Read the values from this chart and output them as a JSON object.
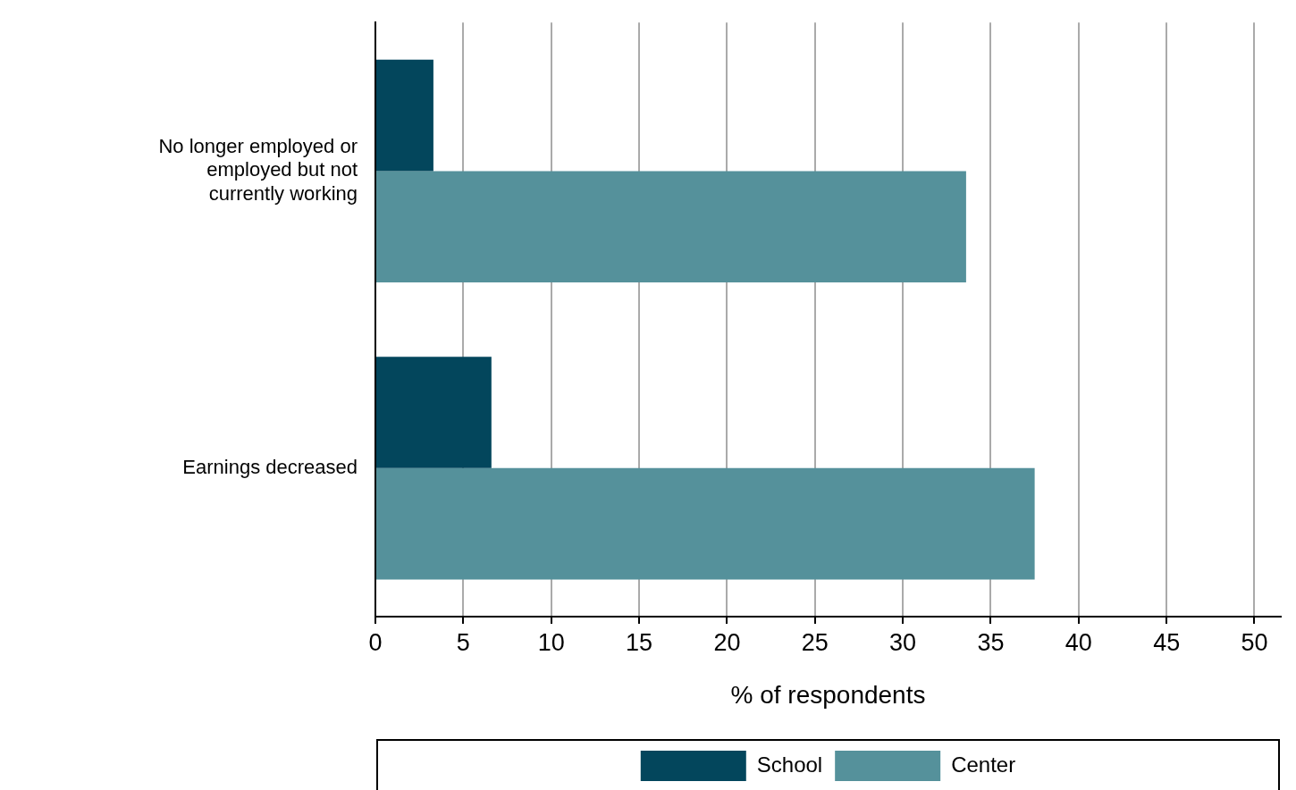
{
  "chart_data": {
    "type": "bar",
    "orientation": "horizontal",
    "categories": [
      "No longer employed or employed but not currently working",
      "Earnings decreased"
    ],
    "series": [
      {
        "name": "School",
        "color": "#03465c",
        "values": [
          3.3,
          6.6
        ]
      },
      {
        "name": "Center",
        "color": "#55919b",
        "values": [
          33.6,
          37.5
        ]
      }
    ],
    "xlabel": "% of respondents",
    "xlim": [
      0,
      51.5
    ],
    "xticks": [
      0,
      5,
      10,
      15,
      20,
      25,
      30,
      35,
      40,
      45,
      50
    ],
    "grid": "x",
    "legend": "bottom"
  }
}
